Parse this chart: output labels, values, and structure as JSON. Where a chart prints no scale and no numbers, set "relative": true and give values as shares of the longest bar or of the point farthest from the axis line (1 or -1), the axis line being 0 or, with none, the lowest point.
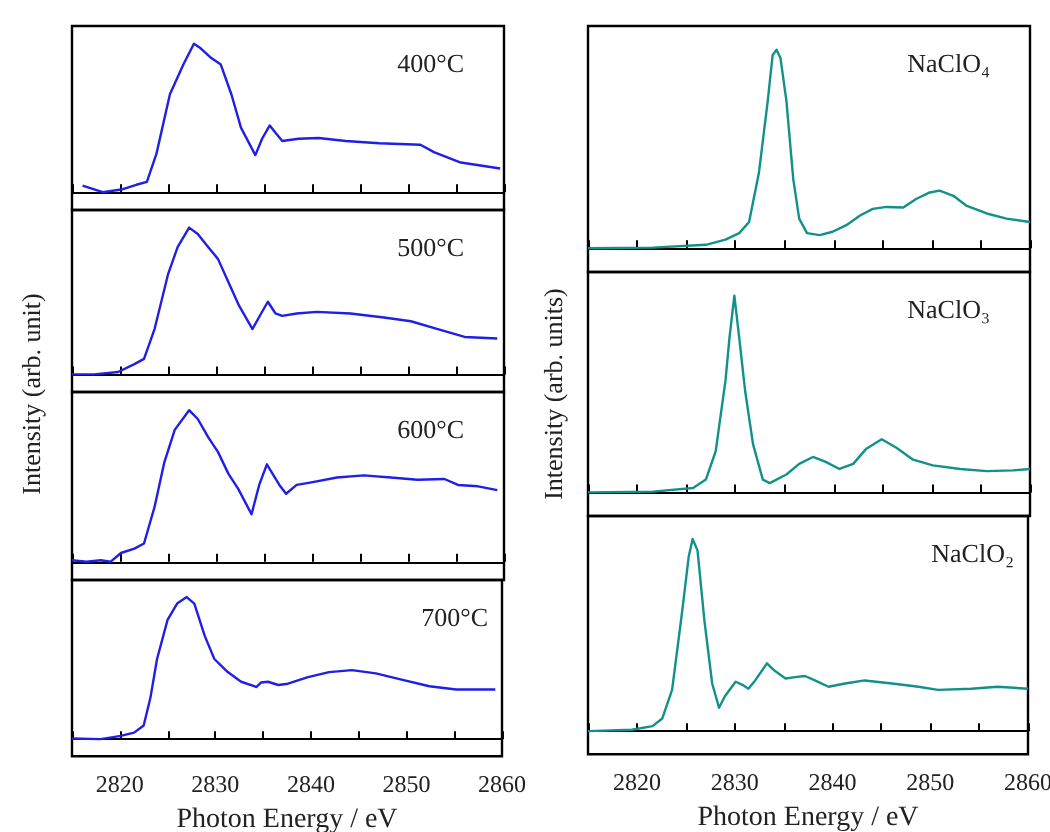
{
  "chart_data": [
    {
      "type": "line",
      "relative": true,
      "ylabel": "Intensity (arb. unit)",
      "annotations": [
        "400°C"
      ],
      "color": "#1f1fe6",
      "xlim": [
        2815,
        2860
      ],
      "xticks": [
        {
          "value": 2815,
          "label": null
        },
        {
          "value": 2820,
          "label": null
        },
        {
          "value": 2825,
          "label": null
        },
        {
          "value": 2830,
          "label": null
        },
        {
          "value": 2835,
          "label": null
        },
        {
          "value": 2840,
          "label": null
        },
        {
          "value": 2845,
          "label": null
        },
        {
          "value": 2850,
          "label": null
        },
        {
          "value": 2855,
          "label": null
        },
        {
          "value": 2860,
          "label": null
        }
      ],
      "tick_labels": false,
      "x": [
        2816.1,
        2818.2,
        2820.3,
        2821.7,
        2822.8,
        2823.8,
        2825.2,
        2826.6,
        2827.7,
        2828.4,
        2829.4,
        2830.5,
        2831.6,
        2832.6,
        2834.1,
        2834.8,
        2835.6,
        2836.2,
        2836.9,
        2838.6,
        2840.7,
        2843.5,
        2847.0,
        2851.3,
        2852.7,
        2855.5,
        2859.6
      ],
      "values": [
        0.045,
        0,
        0.02,
        0.05,
        0.07,
        0.26,
        0.66,
        0.86,
        1,
        0.97,
        0.91,
        0.86,
        0.66,
        0.435,
        0.25,
        0.36,
        0.45,
        0.4,
        0.345,
        0.36,
        0.365,
        0.345,
        0.33,
        0.32,
        0.27,
        0.2,
        0.16
      ]
    },
    {
      "type": "line",
      "relative": true,
      "annotations": [
        "500°C"
      ],
      "color": "#1f1fe6",
      "xlim": [
        2815,
        2860
      ],
      "xticks": [
        {
          "value": 2815,
          "label": null
        },
        {
          "value": 2820,
          "label": null
        },
        {
          "value": 2825,
          "label": null
        },
        {
          "value": 2830,
          "label": null
        },
        {
          "value": 2835,
          "label": null
        },
        {
          "value": 2840,
          "label": null
        },
        {
          "value": 2845,
          "label": null
        },
        {
          "value": 2850,
          "label": null
        },
        {
          "value": 2855,
          "label": null
        },
        {
          "value": 2860,
          "label": null
        }
      ],
      "tick_labels": false,
      "x": [
        2815,
        2817.3,
        2819.8,
        2821.5,
        2822.5,
        2823.6,
        2825.0,
        2826.0,
        2827.2,
        2828.1,
        2829.2,
        2830.2,
        2831.3,
        2832.4,
        2833.8,
        2834.7,
        2835.4,
        2836.2,
        2836.9,
        2838.4,
        2840.5,
        2844.0,
        2847.5,
        2850.3,
        2853.1,
        2855.9,
        2859.3
      ],
      "values": [
        0,
        0,
        0.016,
        0.07,
        0.106,
        0.309,
        0.681,
        0.867,
        1,
        0.957,
        0.867,
        0.787,
        0.628,
        0.468,
        0.309,
        0.415,
        0.495,
        0.415,
        0.399,
        0.415,
        0.426,
        0.415,
        0.388,
        0.362,
        0.309,
        0.255,
        0.245
      ]
    },
    {
      "type": "line",
      "relative": true,
      "annotations": [
        "600°C"
      ],
      "color": "#1f1fe6",
      "xlim": [
        2815,
        2860
      ],
      "xticks": [
        {
          "value": 2815,
          "label": null
        },
        {
          "value": 2820,
          "label": null
        },
        {
          "value": 2825,
          "label": null
        },
        {
          "value": 2830,
          "label": null
        },
        {
          "value": 2835,
          "label": null
        },
        {
          "value": 2840,
          "label": null
        },
        {
          "value": 2845,
          "label": null
        },
        {
          "value": 2850,
          "label": null
        },
        {
          "value": 2855,
          "label": null
        },
        {
          "value": 2860,
          "label": null
        }
      ],
      "tick_labels": false,
      "x": [
        2815.0,
        2816.5,
        2818.0,
        2819.0,
        2820.1,
        2821.5,
        2822.5,
        2823.6,
        2824.6,
        2825.7,
        2827.2,
        2828.1,
        2829.2,
        2830.2,
        2831.3,
        2832.3,
        2833.7,
        2834.5,
        2835.3,
        2835.9,
        2836.6,
        2837.3,
        2838.4,
        2839.8,
        2842.6,
        2845.4,
        2848.2,
        2851.0,
        2853.8,
        2855.2,
        2857.3,
        2859.3
      ],
      "values": [
        0.01,
        0,
        0.01,
        0,
        0.058,
        0.087,
        0.121,
        0.362,
        0.652,
        0.87,
        1,
        0.942,
        0.821,
        0.725,
        0.58,
        0.483,
        0.314,
        0.507,
        0.643,
        0.58,
        0.507,
        0.449,
        0.507,
        0.522,
        0.556,
        0.57,
        0.556,
        0.541,
        0.546,
        0.507,
        0.498,
        0.473
      ]
    },
    {
      "type": "line",
      "relative": true,
      "xlabel": "Photon Energy / eV",
      "annotations": [
        "700°C"
      ],
      "color": "#1f1fe6",
      "xlim": [
        2815,
        2860
      ],
      "xticks": [
        {
          "value": 2815,
          "label": null
        },
        2820,
        {
          "value": 2825,
          "label": null
        },
        2830,
        {
          "value": 2835,
          "label": null
        },
        2840,
        {
          "value": 2845,
          "label": null
        },
        2850,
        {
          "value": 2855,
          "label": null
        },
        2860
      ],
      "tick_labels": "x",
      "x": [
        2815.0,
        2818.0,
        2820.1,
        2821.5,
        2822.5,
        2823.2,
        2823.9,
        2825.0,
        2826.0,
        2827.0,
        2827.8,
        2828.9,
        2829.9,
        2831.3,
        2832.7,
        2834.3,
        2834.8,
        2835.5,
        2836.6,
        2837.6,
        2839.7,
        2841.9,
        2844.3,
        2846.8,
        2849.6,
        2852.4,
        2855.2,
        2859.3
      ],
      "values": [
        0.005,
        0,
        0.023,
        0.046,
        0.096,
        0.289,
        0.564,
        0.839,
        0.954,
        1,
        0.954,
        0.725,
        0.564,
        0.472,
        0.404,
        0.367,
        0.399,
        0.404,
        0.381,
        0.39,
        0.436,
        0.472,
        0.486,
        0.463,
        0.417,
        0.372,
        0.349,
        0.349
      ]
    },
    {
      "type": "line",
      "relative": true,
      "ylabel": "Intensity (arb. units)",
      "annotations": [
        "NaClO₄"
      ],
      "color": "#12918a",
      "xlim": [
        2815,
        2860
      ],
      "xticks": [
        {
          "value": 2815,
          "label": null
        },
        {
          "value": 2820,
          "label": null
        },
        {
          "value": 2825,
          "label": null
        },
        {
          "value": 2830,
          "label": null
        },
        {
          "value": 2835,
          "label": null
        },
        {
          "value": 2840,
          "label": null
        },
        {
          "value": 2845,
          "label": null
        },
        {
          "value": 2850,
          "label": null
        },
        {
          "value": 2855,
          "label": null
        },
        {
          "value": 2860,
          "label": null
        }
      ],
      "tick_labels": false,
      "x": [
        2815,
        2821.6,
        2827.0,
        2829.0,
        2830.4,
        2831.4,
        2832.4,
        2833.3,
        2833.8,
        2834.2,
        2834.6,
        2835.2,
        2835.9,
        2836.5,
        2837.3,
        2838.6,
        2839.9,
        2841.3,
        2842.7,
        2844.0,
        2845.4,
        2847.1,
        2848.4,
        2849.8,
        2850.8,
        2852.2,
        2853.5,
        2855.6,
        2857.6,
        2860
      ],
      "values": [
        0,
        0.003,
        0.017,
        0.043,
        0.076,
        0.132,
        0.38,
        0.743,
        0.974,
        1,
        0.957,
        0.743,
        0.347,
        0.149,
        0.076,
        0.066,
        0.083,
        0.116,
        0.165,
        0.198,
        0.208,
        0.205,
        0.248,
        0.281,
        0.29,
        0.264,
        0.215,
        0.175,
        0.149,
        0.132
      ]
    },
    {
      "type": "line",
      "relative": true,
      "annotations": [
        "NaClO₃"
      ],
      "color": "#12918a",
      "xlim": [
        2815,
        2860
      ],
      "xticks": [
        {
          "value": 2815,
          "label": null
        },
        {
          "value": 2820,
          "label": null
        },
        {
          "value": 2825,
          "label": null
        },
        {
          "value": 2830,
          "label": null
        },
        {
          "value": 2835,
          "label": null
        },
        {
          "value": 2840,
          "label": null
        },
        {
          "value": 2845,
          "label": null
        },
        {
          "value": 2850,
          "label": null
        },
        {
          "value": 2855,
          "label": null
        },
        {
          "value": 2860,
          "label": null
        }
      ],
      "tick_labels": false,
      "x": [
        2815,
        2821.6,
        2825.7,
        2827.0,
        2828.0,
        2828.4,
        2829.0,
        2829.4,
        2829.9,
        2830.4,
        2831.0,
        2831.8,
        2832.8,
        2833.5,
        2835.2,
        2836.5,
        2837.9,
        2839.2,
        2840.6,
        2842.0,
        2843.3,
        2844.9,
        2846.4,
        2848.1,
        2850.1,
        2852.9,
        2855.6,
        2858.3,
        2860
      ],
      "values": [
        0,
        0.004,
        0.022,
        0.065,
        0.209,
        0.353,
        0.569,
        0.784,
        1,
        0.784,
        0.515,
        0.245,
        0.065,
        0.047,
        0.091,
        0.145,
        0.18,
        0.155,
        0.119,
        0.145,
        0.22,
        0.27,
        0.227,
        0.166,
        0.137,
        0.119,
        0.108,
        0.112,
        0.119
      ]
    },
    {
      "type": "line",
      "relative": true,
      "xlabel": "Photon Energy / eV",
      "annotations": [
        "NaClO₂"
      ],
      "color": "#12918a",
      "xlim": [
        2815,
        2860
      ],
      "xticks": [
        {
          "value": 2815,
          "label": null
        },
        2820,
        {
          "value": 2825,
          "label": null
        },
        2830,
        {
          "value": 2835,
          "label": null
        },
        2840,
        {
          "value": 2845,
          "label": null
        },
        2850,
        {
          "value": 2855,
          "label": null
        },
        2860
      ],
      "tick_labels": "x",
      "x": [
        2815,
        2819.5,
        2821.6,
        2822.6,
        2823.6,
        2824.6,
        2825.3,
        2825.7,
        2826.2,
        2826.9,
        2827.7,
        2828.4,
        2829.0,
        2830.1,
        2830.8,
        2831.4,
        2832.1,
        2833.3,
        2834.1,
        2835.2,
        2836.2,
        2837.2,
        2838.2,
        2839.6,
        2841.3,
        2843.3,
        2846.1,
        2848.8,
        2850.8,
        2854.2,
        2856.9,
        2860
      ],
      "values": [
        0,
        0.007,
        0.026,
        0.066,
        0.215,
        0.611,
        0.908,
        1,
        0.941,
        0.578,
        0.248,
        0.122,
        0.182,
        0.257,
        0.241,
        0.221,
        0.264,
        0.353,
        0.314,
        0.274,
        0.281,
        0.287,
        0.264,
        0.231,
        0.248,
        0.264,
        0.248,
        0.231,
        0.215,
        0.221,
        0.231,
        0.221
      ]
    }
  ]
}
